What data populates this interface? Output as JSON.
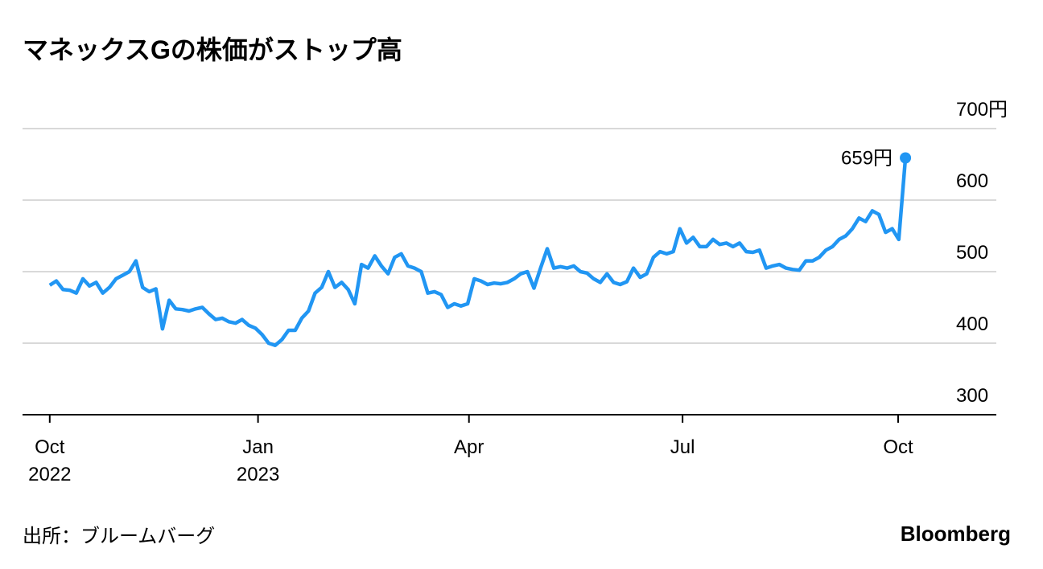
{
  "chart_data": {
    "type": "line",
    "title": "マネックスGの株価がストップ高",
    "source": "出所：ブルームバーグ",
    "brand": "Bloomberg",
    "annotation": "659円",
    "color": "#2196f3",
    "grid": true,
    "values": [
      481,
      487,
      475,
      474,
      470,
      490,
      480,
      485,
      470,
      478,
      490,
      495,
      500,
      515,
      478,
      472,
      476,
      420,
      460,
      448,
      447,
      445,
      448,
      450,
      441,
      433,
      435,
      430,
      428,
      433,
      425,
      421,
      412,
      400,
      397,
      405,
      418,
      418,
      435,
      445,
      470,
      478,
      500,
      478,
      485,
      475,
      455,
      510,
      505,
      522,
      508,
      497,
      520,
      525,
      508,
      505,
      500,
      470,
      472,
      468,
      450,
      455,
      452,
      455,
      490,
      487,
      482,
      484,
      483,
      485,
      490,
      497,
      500,
      477,
      505,
      532,
      505,
      507,
      505,
      508,
      500,
      498,
      490,
      485,
      497,
      485,
      482,
      486,
      505,
      492,
      497,
      520,
      528,
      525,
      528,
      560,
      540,
      548,
      535,
      535,
      545,
      538,
      540,
      535,
      540,
      528,
      527,
      530,
      505,
      508,
      510,
      505,
      503,
      502,
      515,
      515,
      520,
      530,
      535,
      545,
      550,
      560,
      575,
      570,
      585,
      580,
      555,
      560,
      545,
      659
    ],
    "xlim": [
      -4.1,
      142.7
    ],
    "xticks": [
      {
        "value": 0,
        "label": "Oct",
        "year": "2022"
      },
      {
        "value": 31.4,
        "label": "Jan",
        "year": "2023"
      },
      {
        "value": 63.2,
        "label": "Apr"
      },
      {
        "value": 95.4,
        "label": "Jul"
      },
      {
        "value": 127.9,
        "label": "Oct"
      }
    ],
    "ylim": [
      300,
      700
    ],
    "yticks": [
      {
        "value": 700,
        "label": "700円"
      },
      600,
      500,
      400,
      300
    ]
  }
}
